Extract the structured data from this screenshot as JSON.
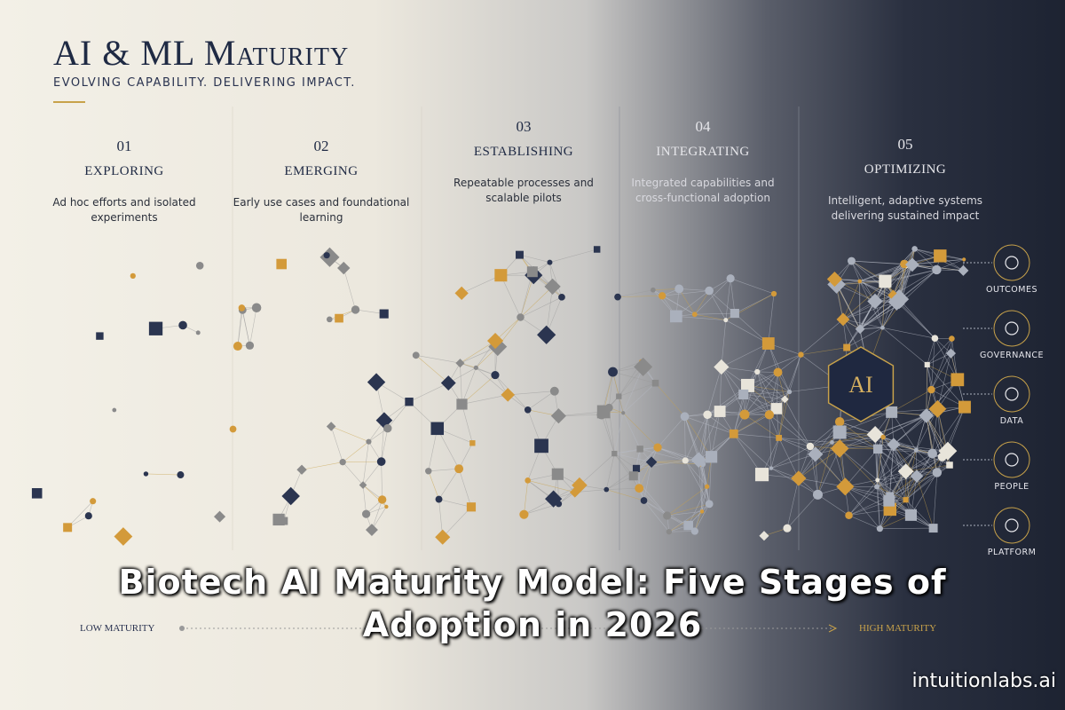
{
  "header": {
    "title": "AI & ML Maturity",
    "subtitle": "EVOLVING CAPABILITY. DELIVERING IMPACT."
  },
  "stages": [
    {
      "number": "01",
      "name": "EXPLORING",
      "description": "Ad hoc efforts and isolated experiments"
    },
    {
      "number": "02",
      "name": "EMERGING",
      "description": "Early use cases and foundational learning"
    },
    {
      "number": "03",
      "name": "ESTABLISHING",
      "description": "Repeatable processes and scalable pilots"
    },
    {
      "number": "04",
      "name": "INTEGRATING",
      "description": "Integrated capabilities and cross-functional adoption"
    },
    {
      "number": "05",
      "name": "OPTIMIZING",
      "description": "Intelligent, adaptive systems delivering sustained impact"
    }
  ],
  "core": "AI",
  "pillars": [
    "OUTCOMES",
    "GOVERNANCE",
    "DATA",
    "PEOPLE",
    "PLATFORM"
  ],
  "axis": {
    "low": "LOW MATURITY",
    "high": "HIGH MATURITY"
  },
  "overlay_title": "Biotech AI Maturity Model: Five Stages of Adoption in 2026",
  "watermark": "intuitionlabs.ai"
}
